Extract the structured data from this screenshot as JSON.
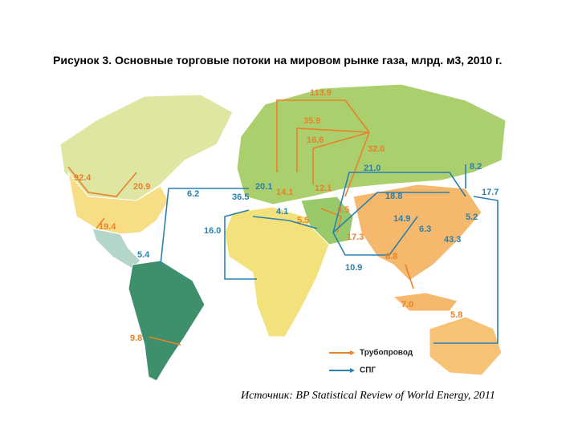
{
  "title": "Рисунок 3. Основные торговые потоки на мировом рынке газа, млрд. м3, 2010 г.",
  "pipeline_flows": [
    "113.9",
    "35.9",
    "16.6",
    "32.0",
    "14.1",
    "12.1",
    "6.5",
    "5.5",
    "17.3",
    "92.4",
    "20.9",
    "19.4",
    "9.8",
    "8.8",
    "7.0",
    "5.8"
  ],
  "lng_flows": [
    "21.0",
    "18.8",
    "8.2",
    "17.7",
    "5.2",
    "14.9",
    "6.3",
    "43.3",
    "10.9",
    "6.2",
    "16.0",
    "36.5",
    "20.1",
    "4.1",
    "5.4"
  ],
  "legend": [
    {
      "label": "Трубопровод",
      "color": "#e8822a"
    },
    {
      "label": "СПГ",
      "color": "#2a80b0"
    }
  ],
  "source": "Источник: BP Statistical Review of World Energy, 2011"
}
